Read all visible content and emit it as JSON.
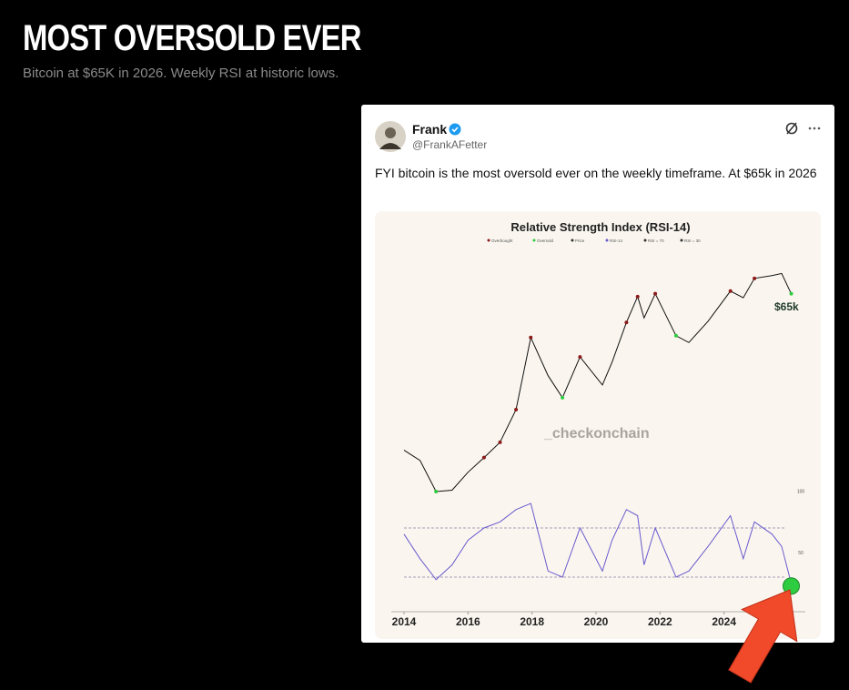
{
  "header": {
    "title": "MOST OVERSOLD EVER",
    "subtitle": "Bitcoin at $65K in 2026. Weekly RSI at historic lows."
  },
  "post": {
    "author": "Frank",
    "handle": "@FrankAFetter",
    "text": "FYI bitcoin is the most oversold ever on the weekly timeframe. At $65k in 2026",
    "chart": {
      "type": "line",
      "title": "Relative Strength Index (RSI-14)",
      "legend": [
        "Overbought",
        "Oversold",
        "Price",
        "RSI-14",
        "RSI = 70",
        "RSI = 30"
      ],
      "watermark": "_checkonchain",
      "annotation": "$65k",
      "x": [
        2014.0,
        2014.5,
        2015.0,
        2015.5,
        2016.0,
        2016.5,
        2017.0,
        2017.5,
        2017.96,
        2018.5,
        2018.95,
        2019.5,
        2020.2,
        2020.5,
        2020.95,
        2021.3,
        2021.5,
        2021.85,
        2022.5,
        2022.9,
        2023.5,
        2024.2,
        2024.6,
        2024.95,
        2025.5,
        2025.8,
        2026.1
      ],
      "price": [
        800,
        600,
        250,
        260,
        430,
        650,
        1000,
        2500,
        19000,
        6500,
        3500,
        11000,
        5000,
        9500,
        29000,
        60000,
        33000,
        65000,
        20000,
        16500,
        30000,
        70000,
        58000,
        100000,
        108000,
        115000,
        65000
      ],
      "rsi": [
        65,
        45,
        28,
        40,
        60,
        70,
        75,
        85,
        90,
        35,
        30,
        70,
        35,
        60,
        85,
        80,
        40,
        70,
        30,
        35,
        55,
        80,
        45,
        75,
        65,
        55,
        25
      ],
      "xlim": [
        2014,
        2026
      ],
      "xticks": [
        2014,
        2016,
        2018,
        2020,
        2022,
        2024
      ],
      "ylim": [
        150,
        150000
      ],
      "log_scale": true,
      "rsi_ylim": [
        0,
        100
      ],
      "rsi_ticks": [
        100,
        50
      ],
      "rsi_levels": [
        70,
        30
      ],
      "colors": {
        "price": "#111111",
        "rsi": "#6a5acd",
        "overbought": "#8b1a1a",
        "oversold": "#2ecc40"
      }
    }
  }
}
